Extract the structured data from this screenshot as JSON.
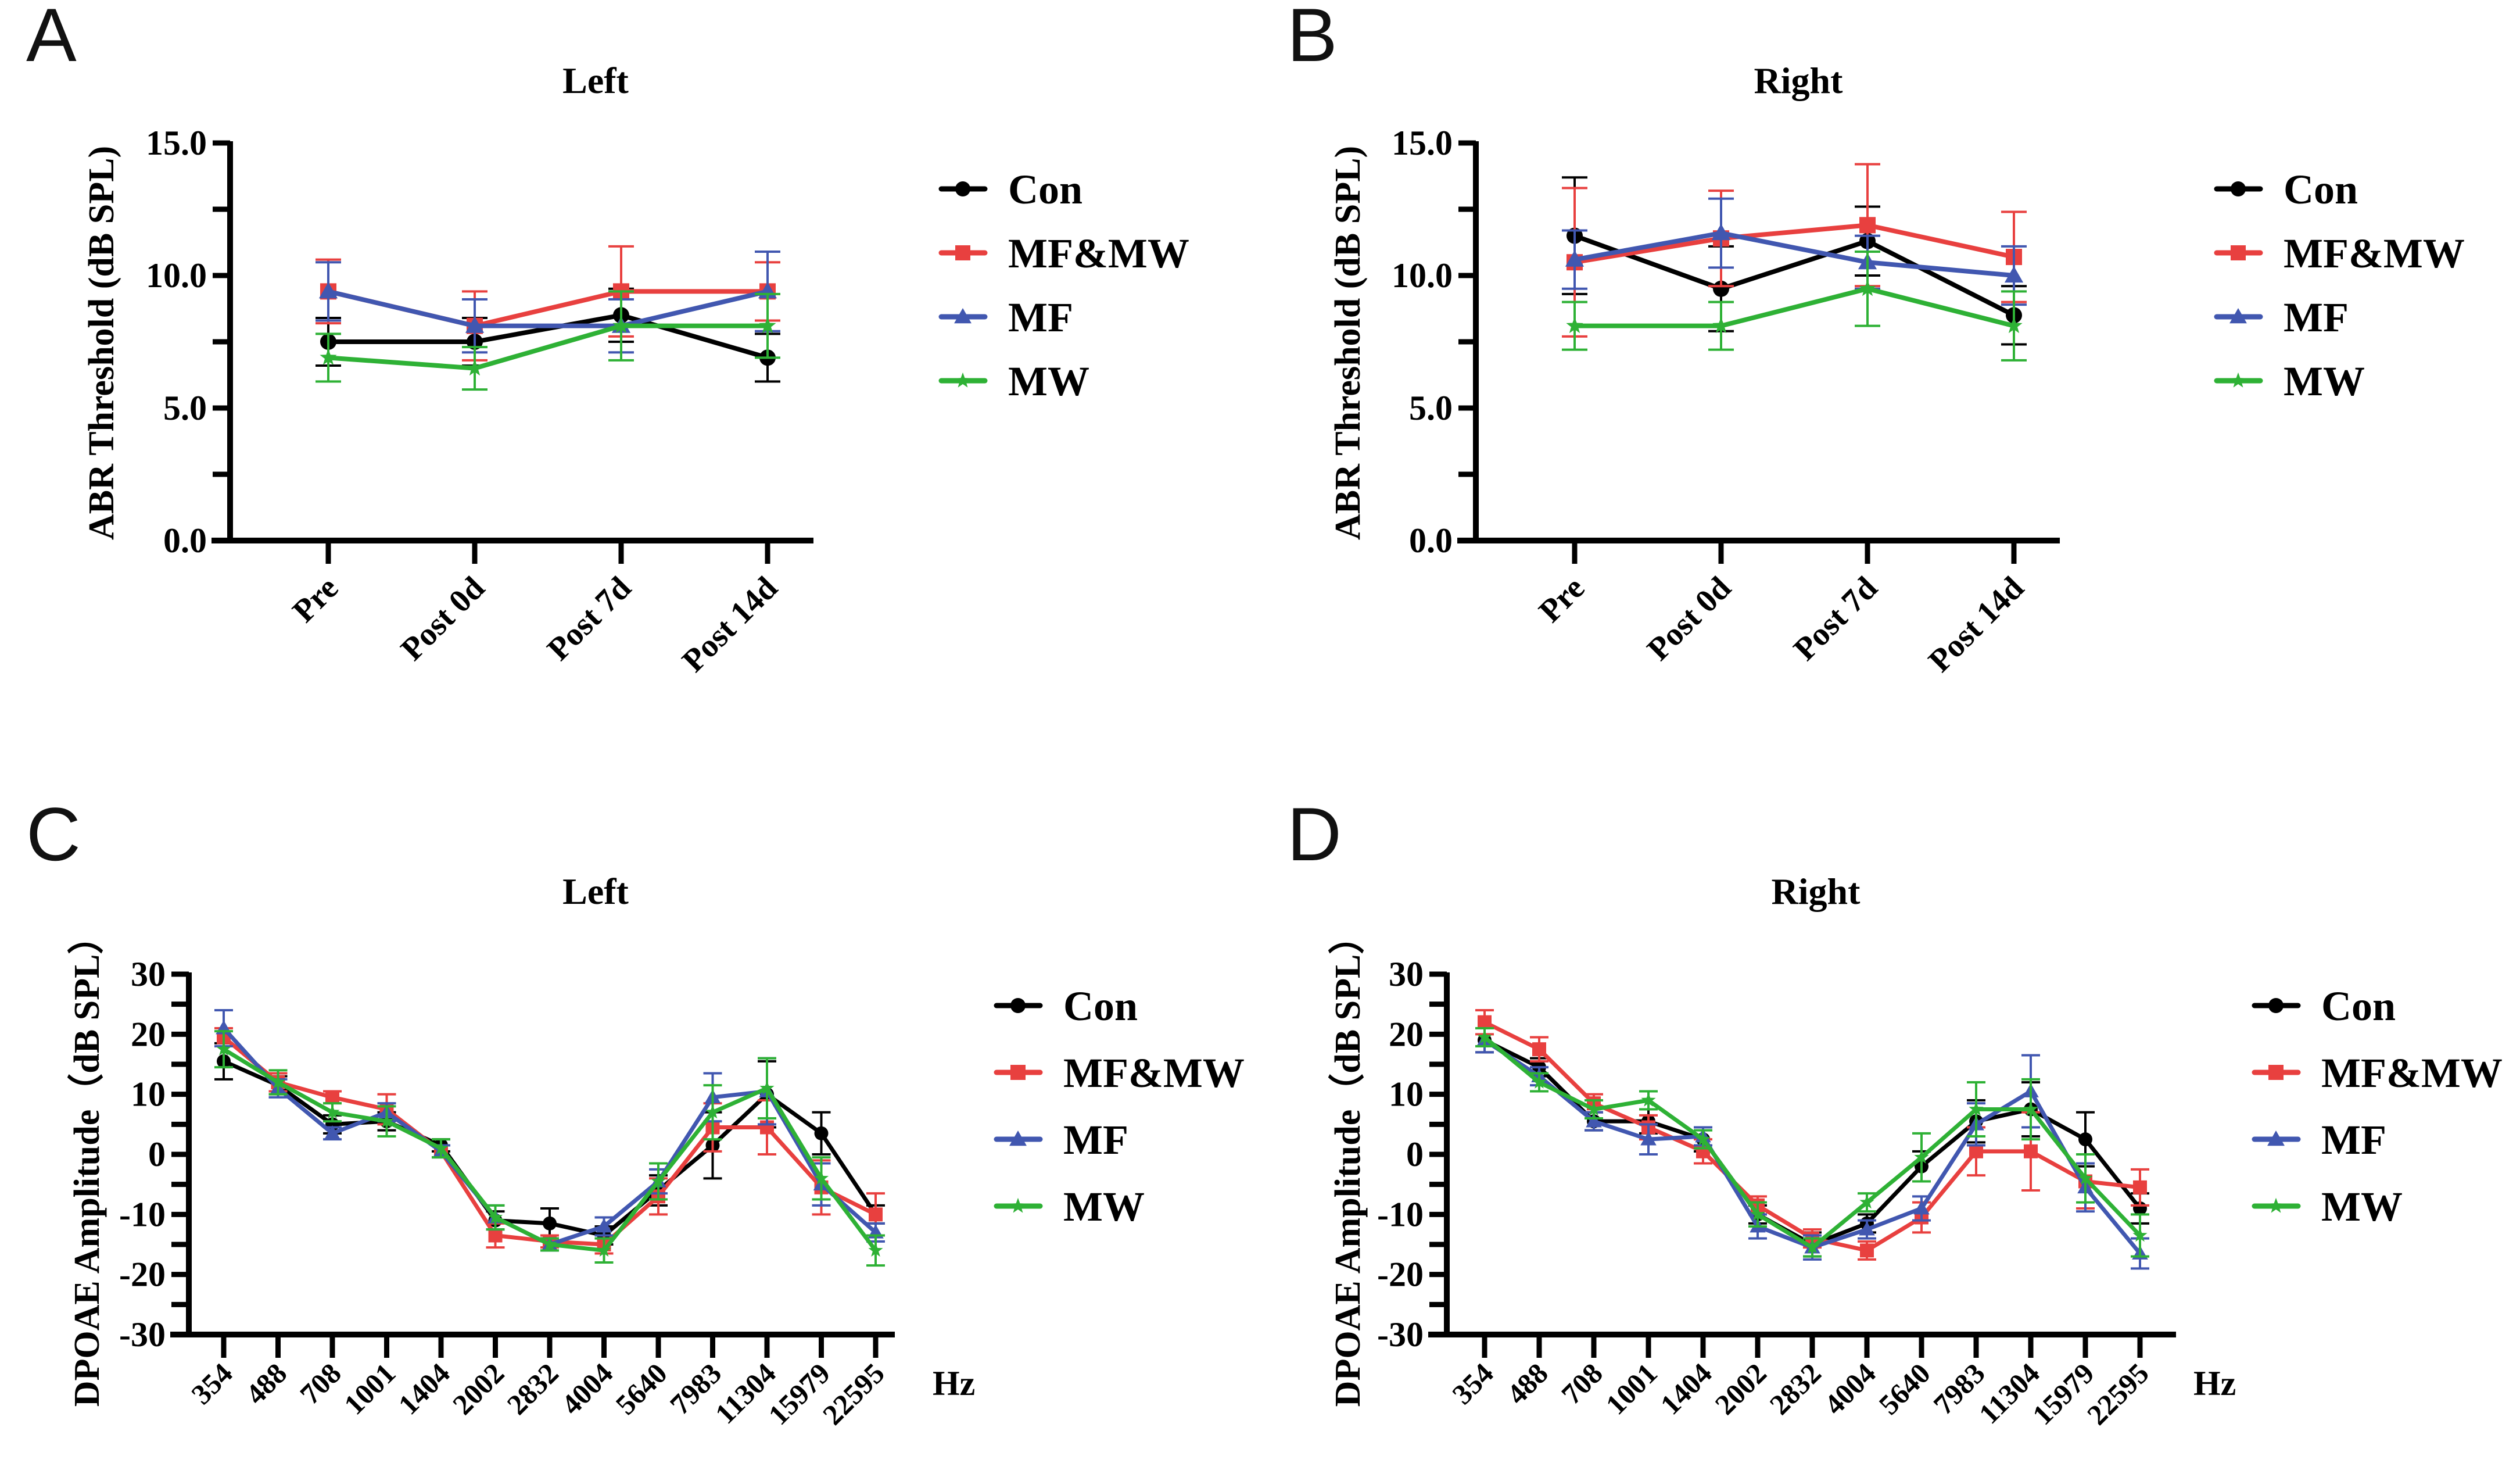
{
  "chart_data": [
    {
      "panel": "A",
      "type": "line",
      "title": "Left",
      "xlabel": "",
      "ylabel": "ABR Threshold (dB SPL)",
      "ylim": [
        0,
        15
      ],
      "yticks": [
        "0.0",
        "5.0",
        "10.0",
        "15.0"
      ],
      "y_minor_step": 2.5,
      "categories": [
        "Pre",
        "Post 0d",
        "Post 7d",
        "Post 14d"
      ],
      "legend_position": "right",
      "series": [
        {
          "name": "Con",
          "color": "#000000",
          "marker": "circle",
          "values": [
            7.5,
            7.5,
            8.5,
            6.9
          ],
          "err": [
            0.9,
            0.9,
            1.0,
            0.9
          ]
        },
        {
          "name": "MF&MW",
          "color": "#e8403f",
          "marker": "square",
          "values": [
            9.4,
            8.1,
            9.4,
            9.4
          ],
          "err": [
            1.2,
            1.3,
            1.7,
            1.1
          ]
        },
        {
          "name": "MF",
          "color": "#4157b0",
          "marker": "triangle",
          "values": [
            9.4,
            8.1,
            8.1,
            9.4
          ],
          "err": [
            1.1,
            1.0,
            1.0,
            1.5
          ]
        },
        {
          "name": "MW",
          "color": "#2eb135",
          "marker": "star",
          "values": [
            6.9,
            6.5,
            8.1,
            8.1
          ],
          "err": [
            0.9,
            0.8,
            1.3,
            1.2
          ]
        }
      ]
    },
    {
      "panel": "B",
      "type": "line",
      "title": "Right",
      "xlabel": "",
      "ylabel": "ABR Threshold (dB SPL)",
      "ylim": [
        0,
        15
      ],
      "yticks": [
        "0.0",
        "5.0",
        "10.0",
        "15.0"
      ],
      "y_minor_step": 2.5,
      "categories": [
        "Pre",
        "Post 0d",
        "Post 7d",
        "Post 14d"
      ],
      "legend_position": "right",
      "series": [
        {
          "name": "Con",
          "color": "#000000",
          "marker": "circle",
          "values": [
            11.5,
            9.5,
            11.3,
            8.5
          ],
          "err": [
            2.2,
            1.6,
            1.3,
            1.1
          ]
        },
        {
          "name": "MF&MW",
          "color": "#e8403f",
          "marker": "square",
          "values": [
            10.5,
            11.4,
            11.9,
            10.7
          ],
          "err": [
            2.8,
            1.8,
            2.3,
            1.7
          ]
        },
        {
          "name": "MF",
          "color": "#4157b0",
          "marker": "triangle",
          "values": [
            10.6,
            11.6,
            10.5,
            10.0
          ],
          "err": [
            1.1,
            1.3,
            1.0,
            1.1
          ]
        },
        {
          "name": "MW",
          "color": "#2eb135",
          "marker": "star",
          "values": [
            8.1,
            8.1,
            9.5,
            8.1
          ],
          "err": [
            0.9,
            0.9,
            1.4,
            1.3
          ]
        }
      ]
    },
    {
      "panel": "C",
      "type": "line",
      "title": "Left",
      "xlabel": "Hz",
      "ylabel": "DPOAE Amplitude（dB SPL）",
      "ylim": [
        -30,
        30
      ],
      "yticks": [
        "-30",
        "-20",
        "-10",
        "0",
        "10",
        "20",
        "30"
      ],
      "y_minor_step": 5,
      "categories": [
        "354",
        "488",
        "708",
        "1001",
        "1404",
        "2002",
        "2832",
        "4004",
        "5640",
        "7983",
        "11304",
        "15979",
        "22595"
      ],
      "legend_position": "right",
      "series": [
        {
          "name": "Con",
          "color": "#000000",
          "marker": "circle",
          "values": [
            15.5,
            11.5,
            5,
            5.5,
            1.5,
            -11,
            -11.5,
            -13.5,
            -6,
            1.5,
            10,
            3.5,
            -10
          ],
          "err": [
            3,
            1.5,
            1.5,
            1.5,
            1,
            1.5,
            2.5,
            1.5,
            2.5,
            5.5,
            5.5,
            3.5,
            1.5
          ]
        },
        {
          "name": "MF&MW",
          "color": "#e8403f",
          "marker": "square",
          "values": [
            19.5,
            12,
            9.5,
            7.5,
            0.5,
            -13.5,
            -14.5,
            -15,
            -7,
            4.5,
            4.5,
            -5.5,
            -10
          ],
          "err": [
            1.5,
            1.5,
            1,
            2.5,
            1,
            2,
            1,
            1.5,
            3,
            4,
            4.5,
            4.5,
            3.5
          ]
        },
        {
          "name": "MF",
          "color": "#4157b0",
          "marker": "triangle",
          "values": [
            21,
            11,
            3.5,
            7,
            0.5,
            -10.5,
            -15,
            -12,
            -4.5,
            9.5,
            10.5,
            -5,
            -13
          ],
          "err": [
            3,
            1.5,
            1,
            1.5,
            1,
            2,
            1,
            1.5,
            2,
            4,
            5.5,
            3.5,
            1.5
          ]
        },
        {
          "name": "MW",
          "color": "#2eb135",
          "marker": "star",
          "values": [
            17.5,
            12,
            7,
            5.5,
            1,
            -10.5,
            -15,
            -16,
            -4.5,
            7,
            11,
            -4,
            -16
          ],
          "err": [
            3,
            2,
            1.5,
            2.5,
            1.5,
            2,
            1,
            2,
            3,
            4.5,
            5,
            3.5,
            2.5
          ]
        }
      ]
    },
    {
      "panel": "D",
      "type": "line",
      "title": "Right",
      "xlabel": "Hz",
      "ylabel": "DPOAE Amplitude（dB SPL）",
      "ylim": [
        -30,
        30
      ],
      "yticks": [
        "-30",
        "-20",
        "-10",
        "0",
        "10",
        "20",
        "30"
      ],
      "y_minor_step": 5,
      "categories": [
        "354",
        "488",
        "708",
        "1001",
        "1404",
        "2002",
        "2832",
        "4004",
        "5640",
        "7983",
        "11304",
        "15979",
        "22595"
      ],
      "legend_position": "right",
      "series": [
        {
          "name": "Con",
          "color": "#000000",
          "marker": "circle",
          "values": [
            19,
            14.5,
            5.5,
            5.5,
            2.5,
            -10,
            -15,
            -11.5,
            -2,
            5.5,
            7.5,
            2.5,
            -9
          ],
          "err": [
            2,
            1.5,
            1.5,
            2,
            2,
            1.5,
            2,
            1.5,
            2.5,
            3.5,
            4.5,
            4.5,
            2.5
          ]
        },
        {
          "name": "MF&MW",
          "color": "#e8403f",
          "marker": "square",
          "values": [
            22,
            17.5,
            8.5,
            4.5,
            0.5,
            -8.5,
            -14,
            -16,
            -10.5,
            0.5,
            0.5,
            -4.5,
            -5.5
          ],
          "err": [
            2,
            2,
            1.5,
            2,
            2,
            1.5,
            1.5,
            1.5,
            2.5,
            4,
            6.5,
            4.5,
            3
          ]
        },
        {
          "name": "MF",
          "color": "#4157b0",
          "marker": "triangle",
          "values": [
            19,
            13,
            5.5,
            2.5,
            3,
            -12,
            -15.5,
            -12.5,
            -9,
            5,
            10.5,
            -5.5,
            -16.5
          ],
          "err": [
            2,
            1.5,
            1.5,
            2.5,
            1.5,
            2,
            2,
            1.5,
            2,
            3.5,
            6,
            4,
            2.5
          ]
        },
        {
          "name": "MW",
          "color": "#2eb135",
          "marker": "star",
          "values": [
            19.5,
            12,
            7.5,
            9,
            2.5,
            -10,
            -15.5,
            -8,
            -0.5,
            7.5,
            7.5,
            -4,
            -13.5
          ],
          "err": [
            1.5,
            1.5,
            1.5,
            1.5,
            1.5,
            2,
            1.5,
            1.5,
            4,
            4.5,
            5,
            4,
            3.5
          ]
        }
      ]
    }
  ],
  "panel_letters": [
    "A",
    "B",
    "C",
    "D"
  ]
}
